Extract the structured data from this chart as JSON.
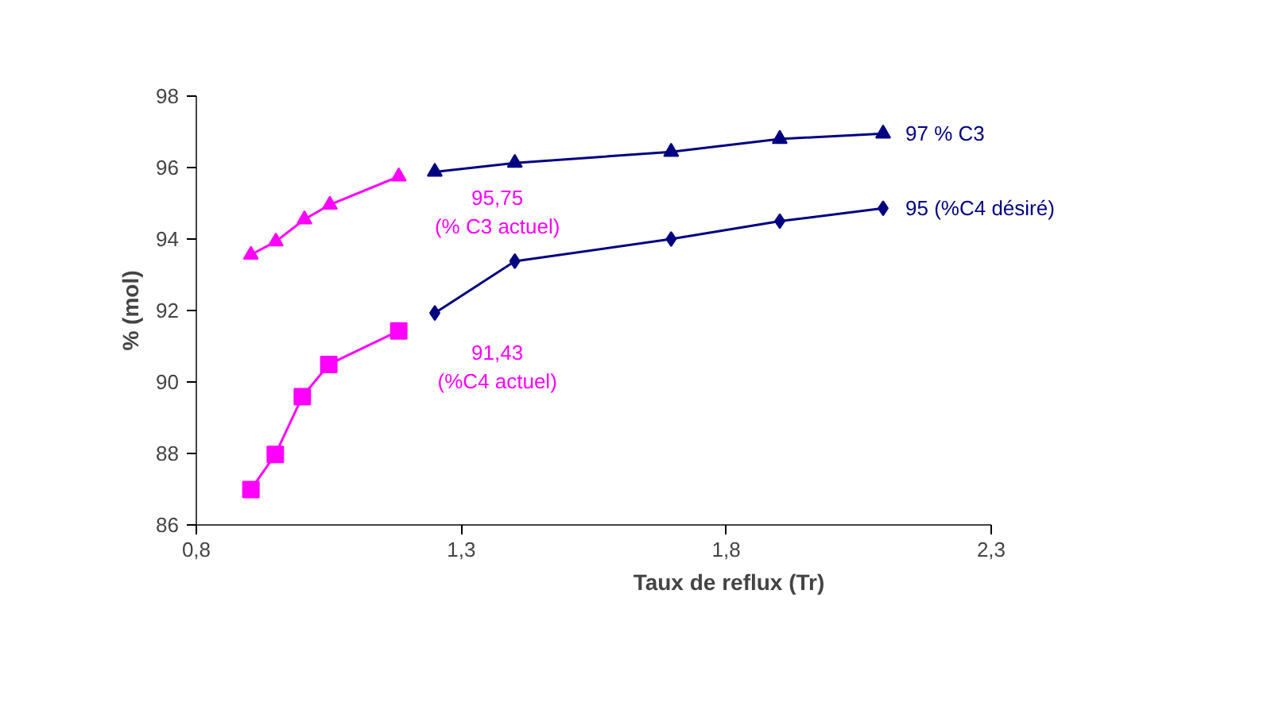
{
  "chart_data": {
    "type": "line",
    "xlabel": "Taux de reflux (Tr)",
    "ylabel": "% (mol)",
    "xlim": [
      0.8,
      2.3
    ],
    "xticks": [
      {
        "value": 0.8,
        "label": "0,8"
      },
      {
        "value": 1.3,
        "label": "1,3"
      },
      {
        "value": 1.8,
        "label": "1,8"
      },
      {
        "value": 2.3,
        "label": "2,3"
      }
    ],
    "ylim": [
      86,
      98
    ],
    "yticks": [
      86,
      88,
      90,
      92,
      94,
      96,
      98
    ],
    "grid": false,
    "series": [
      {
        "name": "97 % C3",
        "color": "#000080",
        "marker": "triangle",
        "x": [
          1.25,
          1.401,
          1.696,
          1.901,
          2.096
        ],
        "values": [
          95.88,
          96.13,
          96.44,
          96.8,
          96.95
        ]
      },
      {
        "name": "95 (%C4 désiré)",
        "color": "#000080",
        "marker": "diamond",
        "x": [
          1.25,
          1.401,
          1.696,
          1.901,
          2.096
        ],
        "values": [
          91.93,
          93.38,
          94.0,
          94.5,
          94.86
        ]
      },
      {
        "color": "#ff00ff",
        "marker": "triangle",
        "x": [
          0.903,
          0.95,
          1.004,
          1.052,
          1.182
        ],
        "values": [
          93.56,
          93.93,
          94.55,
          94.96,
          95.75
        ]
      },
      {
        "color": "#ff00ff",
        "marker": "square",
        "x": [
          0.903,
          0.949,
          1.0,
          1.05,
          1.182
        ],
        "values": [
          86.99,
          87.97,
          89.59,
          90.49,
          91.43
        ]
      }
    ],
    "annotations": [
      {
        "text": "95,75\n(% C3 actuel)",
        "x": 1.182,
        "y": 95.75
      },
      {
        "text": "91,43\n(%C4 actuel)",
        "x": 1.182,
        "y": 91.43
      }
    ]
  }
}
